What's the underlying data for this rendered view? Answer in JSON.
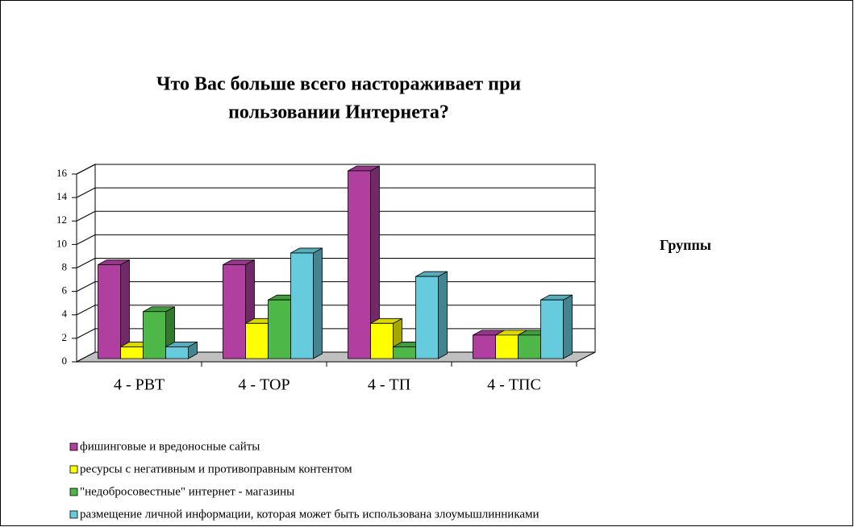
{
  "chart_data": {
    "type": "bar3d",
    "title_lines": [
      "Что Вас больше всего настораживает при",
      "пользовании Интернета?"
    ],
    "x_label": "Группы",
    "categories": [
      "4 - РВТ",
      "4 - ТОР",
      "4 - ТП",
      "4 - ТПС"
    ],
    "series": [
      {
        "name": "фишинговые и вредоносные сайты",
        "color": "#b03fa0",
        "values": [
          8,
          8,
          16,
          2
        ]
      },
      {
        "name": "ресурсы с негативным и противоправным контентом",
        "color": "#ffff00",
        "values": [
          1,
          3,
          3,
          2
        ]
      },
      {
        "name": "\"недобросовестные\"  интернет - магазины",
        "color": "#4db848",
        "values": [
          4,
          5,
          1,
          2
        ]
      },
      {
        "name": "размещение личной информации, которая может быть использована злоумышлинниками",
        "color": "#66ccdd",
        "values": [
          1,
          9,
          7,
          5
        ]
      }
    ],
    "ylim": [
      0,
      16
    ],
    "yticks": [
      0,
      2,
      4,
      6,
      8,
      10,
      12,
      14,
      16
    ],
    "grid": true
  }
}
